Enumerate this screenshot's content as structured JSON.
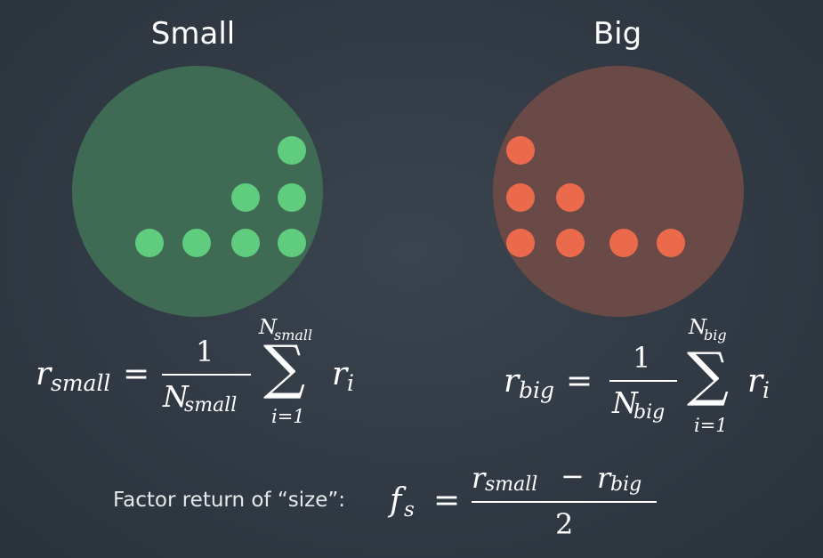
{
  "groups": {
    "small": {
      "title": "Small",
      "circle_color": "#3f6b55",
      "dot_color": "#5fcc7e"
    },
    "big": {
      "title": "Big",
      "circle_color": "#6a4a46",
      "dot_color": "#ec6a4c"
    }
  },
  "formulas": {
    "small": {
      "lhs_var": "r",
      "lhs_sub": "small",
      "equals": "=",
      "numerator": "1",
      "denom_var": "N",
      "denom_sub": "small",
      "sum_symbol": "∑",
      "upper_var": "N",
      "upper_sub": "small",
      "lower": "i=1",
      "term_var": "r",
      "term_sub": "i"
    },
    "big": {
      "lhs_var": "r",
      "lhs_sub": "big",
      "equals": "=",
      "numerator": "1",
      "denom_var": "N",
      "denom_sub": "big",
      "sum_symbol": "∑",
      "upper_var": "N",
      "upper_sub": "big",
      "lower": "i=1",
      "term_var": "r",
      "term_sub": "i"
    },
    "factor": {
      "label": "Factor return of “size”:",
      "lhs_var": "f",
      "lhs_sub": "s",
      "equals": "=",
      "num_a_var": "r",
      "num_a_sub": "small",
      "minus": "−",
      "num_b_var": "r",
      "num_b_sub": "big",
      "denominator": "2"
    }
  }
}
